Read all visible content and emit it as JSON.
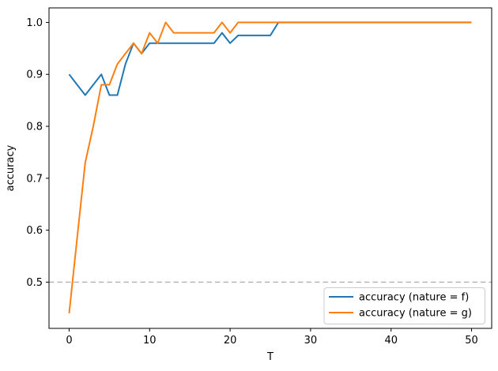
{
  "figure": {
    "background": "#ffffff",
    "spine_color": "#000000",
    "text_color": "#000000"
  },
  "chart_data": {
    "type": "line",
    "title": "",
    "xlabel": "T",
    "ylabel": "accuracy",
    "xlim": [
      -2.5,
      52.5
    ],
    "ylim": [
      0.411,
      1.028
    ],
    "grid": false,
    "legend_position": "lower right",
    "xticks": [
      {
        "value": 0,
        "label": "0"
      },
      {
        "value": 10,
        "label": "10"
      },
      {
        "value": 20,
        "label": "20"
      },
      {
        "value": 30,
        "label": "30"
      },
      {
        "value": 40,
        "label": "40"
      },
      {
        "value": 50,
        "label": "50"
      }
    ],
    "yticks": [
      {
        "value": 0.5,
        "label": "0.5"
      },
      {
        "value": 0.6,
        "label": "0.6"
      },
      {
        "value": 0.7,
        "label": "0.7"
      },
      {
        "value": 0.8,
        "label": "0.8"
      },
      {
        "value": 0.9,
        "label": "0.9"
      },
      {
        "value": 1.0,
        "label": "1.0"
      }
    ],
    "reference_line": {
      "y": 0.5,
      "color": "#b0b0b0",
      "style": "dashed"
    },
    "series": [
      {
        "name": "accuracy (nature = f)",
        "color": "#1f77b4",
        "x": [
          0,
          1,
          2,
          3,
          4,
          5,
          6,
          7,
          8,
          9,
          10,
          11,
          12,
          13,
          14,
          15,
          16,
          17,
          18,
          19,
          20,
          21,
          22,
          23,
          24,
          25,
          26,
          50
        ],
        "y": [
          0.9,
          0.88,
          0.86,
          0.88,
          0.9,
          0.86,
          0.86,
          0.92,
          0.96,
          0.94,
          0.96,
          0.96,
          0.96,
          0.96,
          0.96,
          0.96,
          0.96,
          0.96,
          0.96,
          0.98,
          0.96,
          0.975,
          0.975,
          0.975,
          0.975,
          0.975,
          1.0,
          1.0
        ]
      },
      {
        "name": "accuracy (nature = g)",
        "color": "#ff7f0e",
        "x": [
          0,
          1,
          2,
          3,
          4,
          5,
          6,
          7,
          8,
          9,
          10,
          11,
          12,
          13,
          14,
          15,
          16,
          17,
          18,
          19,
          20,
          21,
          50
        ],
        "y": [
          0.44,
          0.585,
          0.73,
          0.8,
          0.88,
          0.88,
          0.92,
          0.94,
          0.96,
          0.94,
          0.98,
          0.96,
          1.0,
          0.98,
          0.98,
          0.98,
          0.98,
          0.98,
          0.98,
          1.0,
          0.98,
          1.0,
          1.0
        ]
      }
    ]
  }
}
